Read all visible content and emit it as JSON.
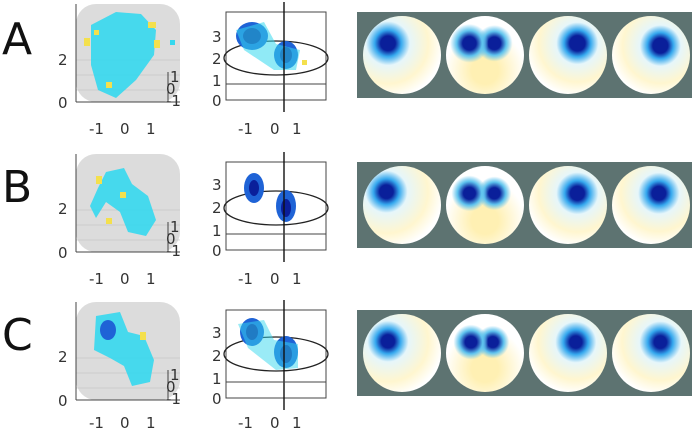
{
  "rows": [
    {
      "label": "A"
    },
    {
      "label": "B"
    },
    {
      "label": "C"
    }
  ],
  "axes": {
    "x_ticks": [
      "-1",
      "0",
      "1"
    ],
    "y_ticks_left": [
      "2",
      "0"
    ],
    "y_ticks_mid": [
      "3",
      "2",
      "1",
      "0"
    ],
    "z_ticks": [
      "1",
      "0",
      "-1"
    ]
  },
  "colors": {
    "strip_background": "#5d7371",
    "cyan": "#35d8ee",
    "dark_blue": "#0a1f9a",
    "yellow": "#f4e04d"
  }
}
